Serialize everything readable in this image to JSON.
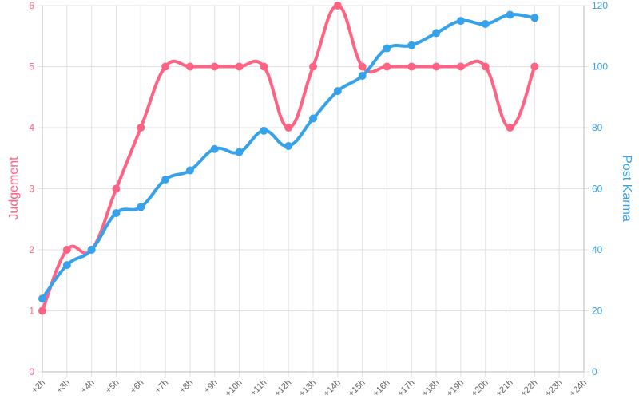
{
  "chart_data": {
    "type": "line",
    "categories": [
      "+2h",
      "+3h",
      "+4h",
      "+5h",
      "+6h",
      "+7h",
      "+8h",
      "+9h",
      "+10h",
      "+11h",
      "+12h",
      "+13h",
      "+14h",
      "+15h",
      "+16h",
      "+17h",
      "+18h",
      "+19h",
      "+20h",
      "+21h",
      "+22h",
      "+23h",
      "+24h"
    ],
    "series": [
      {
        "name": "Judgement",
        "color": "#ff6384",
        "axis": "y",
        "values": [
          1,
          2,
          2,
          3,
          4,
          5,
          5,
          5,
          5,
          5,
          4,
          5,
          6,
          5,
          5,
          5,
          5,
          5,
          5,
          4,
          5,
          null,
          null
        ]
      },
      {
        "name": "Post Karma",
        "color": "#36a2eb",
        "axis": "y2",
        "values": [
          24,
          35,
          40,
          52,
          54,
          63,
          66,
          73,
          72,
          79,
          74,
          83,
          92,
          97,
          106,
          107,
          111,
          115,
          114,
          117,
          116,
          null,
          null
        ]
      }
    ],
    "ylim": [
      0,
      6
    ],
    "yticks": [
      0,
      1,
      2,
      3,
      4,
      5,
      6
    ],
    "y2lim": [
      0,
      120
    ],
    "y2ticks": [
      0,
      20,
      40,
      60,
      80,
      100,
      120
    ],
    "grid": true
  }
}
